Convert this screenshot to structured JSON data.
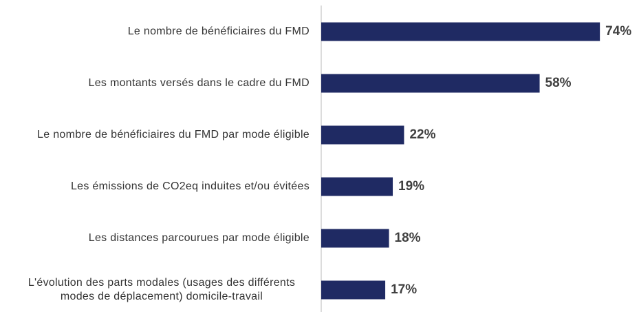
{
  "chart_data": {
    "type": "barh",
    "categories": [
      "Le nombre de bénéficiaires du FMD",
      "Les montants versés dans le cadre du FMD",
      "Le nombre de bénéficiaires du FMD par mode éligible",
      "Les émissions de CO2eq induites et/ou évitées",
      "Les distances parcourues par mode éligible",
      "L'évolution des parts modales (usages des différents modes de déplacement) domicile-travail"
    ],
    "values": [
      74,
      58,
      22,
      19,
      18,
      17
    ],
    "value_labels": [
      "74%",
      "58%",
      "22%",
      "19%",
      "18%",
      "17%"
    ],
    "color": "#1f2a63",
    "xlim": [
      0,
      80
    ]
  }
}
